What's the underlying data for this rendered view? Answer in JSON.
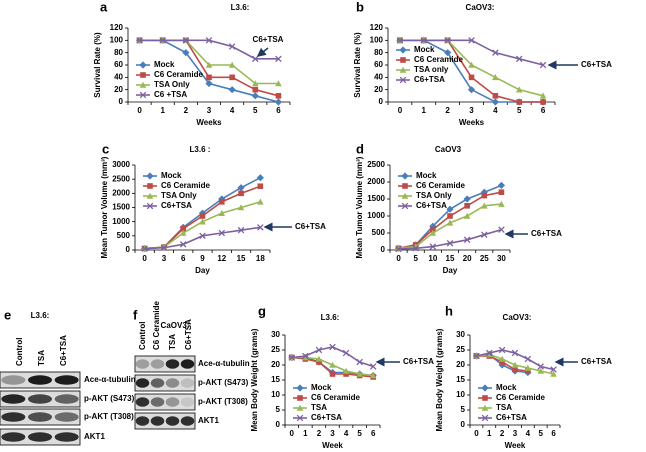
{
  "chart_data": [
    {
      "type": "line",
      "panel": "a",
      "title": "L3.6:",
      "xlabel": "Weeks",
      "ylabel": "Survival Rate (%)",
      "categories": [
        0,
        1,
        2,
        3,
        4,
        5,
        6
      ],
      "ylim": [
        0,
        120
      ],
      "yticks": [
        0,
        20,
        40,
        60,
        80,
        100,
        120
      ],
      "legend": "lower left",
      "annotation": "C6+TSA",
      "series": [
        {
          "name": "Mock",
          "color": "#4a7ebb",
          "marker": "diamond",
          "values": [
            100,
            100,
            80,
            30,
            20,
            10,
            0
          ]
        },
        {
          "name": "C6 Ceramide",
          "color": "#be4b48",
          "marker": "square",
          "values": [
            100,
            100,
            100,
            40,
            40,
            20,
            10
          ]
        },
        {
          "name": "TSA Only",
          "color": "#98b954",
          "marker": "triangle",
          "values": [
            100,
            100,
            100,
            60,
            60,
            30,
            30
          ]
        },
        {
          "name": "C6 +TSA",
          "color": "#7d60a0",
          "marker": "x",
          "values": [
            100,
            100,
            100,
            100,
            90,
            70,
            70
          ]
        }
      ]
    },
    {
      "type": "line",
      "panel": "b",
      "title": "CaOV3:",
      "xlabel": "Weeks",
      "ylabel": "Survival Rate (%)",
      "categories": [
        0,
        1,
        2,
        3,
        4,
        5,
        6
      ],
      "ylim": [
        0,
        120
      ],
      "yticks": [
        0,
        20,
        40,
        60,
        80,
        100,
        120
      ],
      "legend": "center left",
      "annotation": "C6+TSA",
      "series": [
        {
          "name": "Mock",
          "color": "#4a7ebb",
          "marker": "diamond",
          "values": [
            100,
            100,
            80,
            20,
            0,
            0,
            0
          ]
        },
        {
          "name": "C6 Ceramide",
          "color": "#be4b48",
          "marker": "square",
          "values": [
            100,
            100,
            100,
            40,
            10,
            0,
            0
          ]
        },
        {
          "name": "TSA only",
          "color": "#98b954",
          "marker": "triangle",
          "values": [
            100,
            100,
            100,
            60,
            40,
            20,
            10
          ]
        },
        {
          "name": "C6+TSA",
          "color": "#7d60a0",
          "marker": "x",
          "values": [
            100,
            100,
            100,
            100,
            80,
            70,
            60
          ]
        }
      ]
    },
    {
      "type": "line",
      "panel": "c",
      "title": "L3.6 :",
      "xlabel": "Day",
      "ylabel": "Mean Tumor Volume (mm³)",
      "categories": [
        0,
        3,
        6,
        9,
        12,
        15,
        18
      ],
      "ylim": [
        0,
        3000
      ],
      "yticks": [
        0,
        500,
        1000,
        1500,
        2000,
        2500,
        3000
      ],
      "legend": "upper left",
      "annotation": "C6+TSA",
      "series": [
        {
          "name": "Mock",
          "color": "#4a7ebb",
          "marker": "diamond",
          "values": [
            50,
            100,
            800,
            1300,
            1800,
            2200,
            2550
          ]
        },
        {
          "name": "C6 Ceramide",
          "color": "#be4b48",
          "marker": "square",
          "values": [
            50,
            100,
            750,
            1200,
            1700,
            2000,
            2250
          ]
        },
        {
          "name": "TSA Only",
          "color": "#98b954",
          "marker": "triangle",
          "values": [
            50,
            100,
            600,
            1000,
            1300,
            1500,
            1700
          ]
        },
        {
          "name": "C6+TSA",
          "color": "#7d60a0",
          "marker": "x",
          "values": [
            50,
            80,
            200,
            500,
            600,
            700,
            800
          ]
        }
      ]
    },
    {
      "type": "line",
      "panel": "d",
      "title": "CaOV3",
      "xlabel": "Day",
      "ylabel": "Mean Tumor Volume (mm³)",
      "categories": [
        0,
        5,
        10,
        15,
        20,
        25,
        30
      ],
      "ylim": [
        0,
        2500
      ],
      "yticks": [
        0,
        500,
        1000,
        1500,
        2000,
        2500
      ],
      "legend": "upper left",
      "annotation": "C6+TSA",
      "series": [
        {
          "name": "Mock",
          "color": "#4a7ebb",
          "marker": "diamond",
          "values": [
            50,
            150,
            700,
            1200,
            1500,
            1700,
            1900
          ]
        },
        {
          "name": "C6 Ceramide",
          "color": "#be4b48",
          "marker": "square",
          "values": [
            50,
            150,
            600,
            1000,
            1300,
            1600,
            1700
          ]
        },
        {
          "name": "TSA Only",
          "color": "#98b954",
          "marker": "triangle",
          "values": [
            50,
            100,
            500,
            800,
            1000,
            1300,
            1350
          ]
        },
        {
          "name": "C6+TSA",
          "color": "#7d60a0",
          "marker": "x",
          "values": [
            30,
            50,
            100,
            200,
            300,
            450,
            600
          ]
        }
      ]
    },
    {
      "type": "line",
      "panel": "g",
      "title": "L3.6:",
      "xlabel": "Week",
      "ylabel": "Mean Body Weight (grams)",
      "categories": [
        0,
        1,
        2,
        3,
        4,
        5,
        6
      ],
      "ylim": [
        0,
        30
      ],
      "yticks": [
        0,
        5,
        10,
        15,
        20,
        25,
        30
      ],
      "legend": "lower left",
      "annotation": "C6+TSA",
      "series": [
        {
          "name": "Mock",
          "color": "#4a7ebb",
          "marker": "diamond",
          "values": [
            22.5,
            22.5,
            21,
            17.5,
            17.5,
            17,
            16.5
          ]
        },
        {
          "name": "C6 Ceramide",
          "color": "#be4b48",
          "marker": "square",
          "values": [
            22.5,
            22,
            21,
            17,
            17,
            16.5,
            16
          ]
        },
        {
          "name": "TSA",
          "color": "#98b954",
          "marker": "triangle",
          "values": [
            22.5,
            22.5,
            22,
            20,
            18,
            17,
            16.5
          ]
        },
        {
          "name": "C6+TSA",
          "color": "#7d60a0",
          "marker": "x",
          "values": [
            22.5,
            23,
            25,
            26,
            24,
            21,
            19.5
          ]
        }
      ]
    },
    {
      "type": "line",
      "panel": "h",
      "title": "CaOV3:",
      "xlabel": "Week",
      "ylabel": "Mean Body Weight (grams)",
      "categories": [
        0,
        1,
        2,
        3,
        4,
        5,
        6
      ],
      "ylim": [
        0,
        30
      ],
      "yticks": [
        0,
        5,
        10,
        15,
        20,
        25,
        30
      ],
      "legend": "lower left",
      "annotation": "C6+TSA",
      "series": [
        {
          "name": "Mock",
          "color": "#4a7ebb",
          "marker": "diamond",
          "values": [
            23,
            23.5,
            20,
            18,
            17.5,
            null,
            null
          ]
        },
        {
          "name": "C6 Ceramide",
          "color": "#be4b48",
          "marker": "square",
          "values": [
            23,
            23,
            21,
            18.5,
            18,
            null,
            null
          ]
        },
        {
          "name": "TSA",
          "color": "#98b954",
          "marker": "triangle",
          "values": [
            23,
            23.5,
            22,
            20,
            19,
            18,
            17
          ]
        },
        {
          "name": "C6+TSA",
          "color": "#7d60a0",
          "marker": "x",
          "values": [
            23,
            24,
            25,
            24,
            22,
            19.5,
            18.5
          ]
        }
      ]
    }
  ],
  "blots": [
    {
      "panel": "e",
      "title": "L3.6:",
      "lanes": [
        "Control",
        "TSA",
        "C6+TSA"
      ],
      "rows": [
        "Ace-α-tubulin",
        "p-AKT (S473)",
        "p-AKT (T308)",
        "AKT1"
      ]
    },
    {
      "panel": "f",
      "title": "CaOV3:",
      "lanes": [
        "Control",
        "C6 Ceramide",
        "TSA",
        "C6+TSA"
      ],
      "rows": [
        "Ace-α-tubulin",
        "p-AKT (S473)",
        "p-AKT (T308)",
        "AKT1"
      ]
    }
  ]
}
